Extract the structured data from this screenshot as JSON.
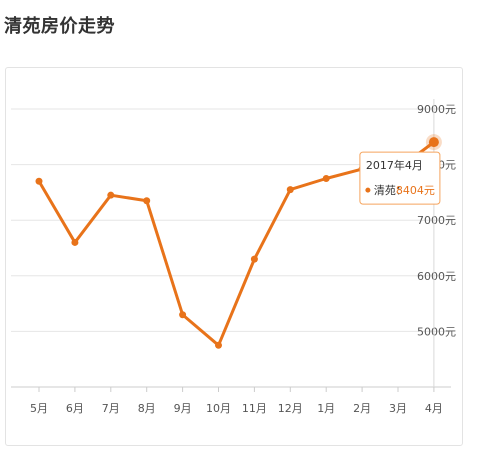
{
  "page": {
    "title": "清苑房价走势"
  },
  "colors": {
    "series": "#e8731a",
    "grid": "#e6e6e6",
    "frame": "#e3e3e3",
    "hover_line": "#d9d9d9",
    "tooltip_border": "#f5a45d"
  },
  "chart_data": {
    "type": "line",
    "title": "",
    "xlabel": "",
    "ylabel": "",
    "categories": [
      "5月",
      "6月",
      "7月",
      "8月",
      "9月",
      "10月",
      "11月",
      "12月",
      "1月",
      "2月",
      "3月",
      "4月"
    ],
    "series": [
      {
        "name": "清苑",
        "values": [
          7700,
          6600,
          7450,
          7350,
          5300,
          4750,
          6300,
          7550,
          7750,
          7920,
          7920,
          8404
        ]
      }
    ],
    "ylim": [
      4000,
      9000
    ],
    "yticks": [
      5000,
      6000,
      7000,
      8000,
      9000
    ],
    "y_tick_labels": [
      "5000元",
      "6000元",
      "7000元",
      "8000元",
      "9000元"
    ],
    "y_axis_side": "right",
    "grid": true,
    "legend": "none",
    "tooltip": {
      "category_index": 11,
      "title": "2017年4月",
      "series_label": "清苑：",
      "value_text": "8404元"
    }
  }
}
